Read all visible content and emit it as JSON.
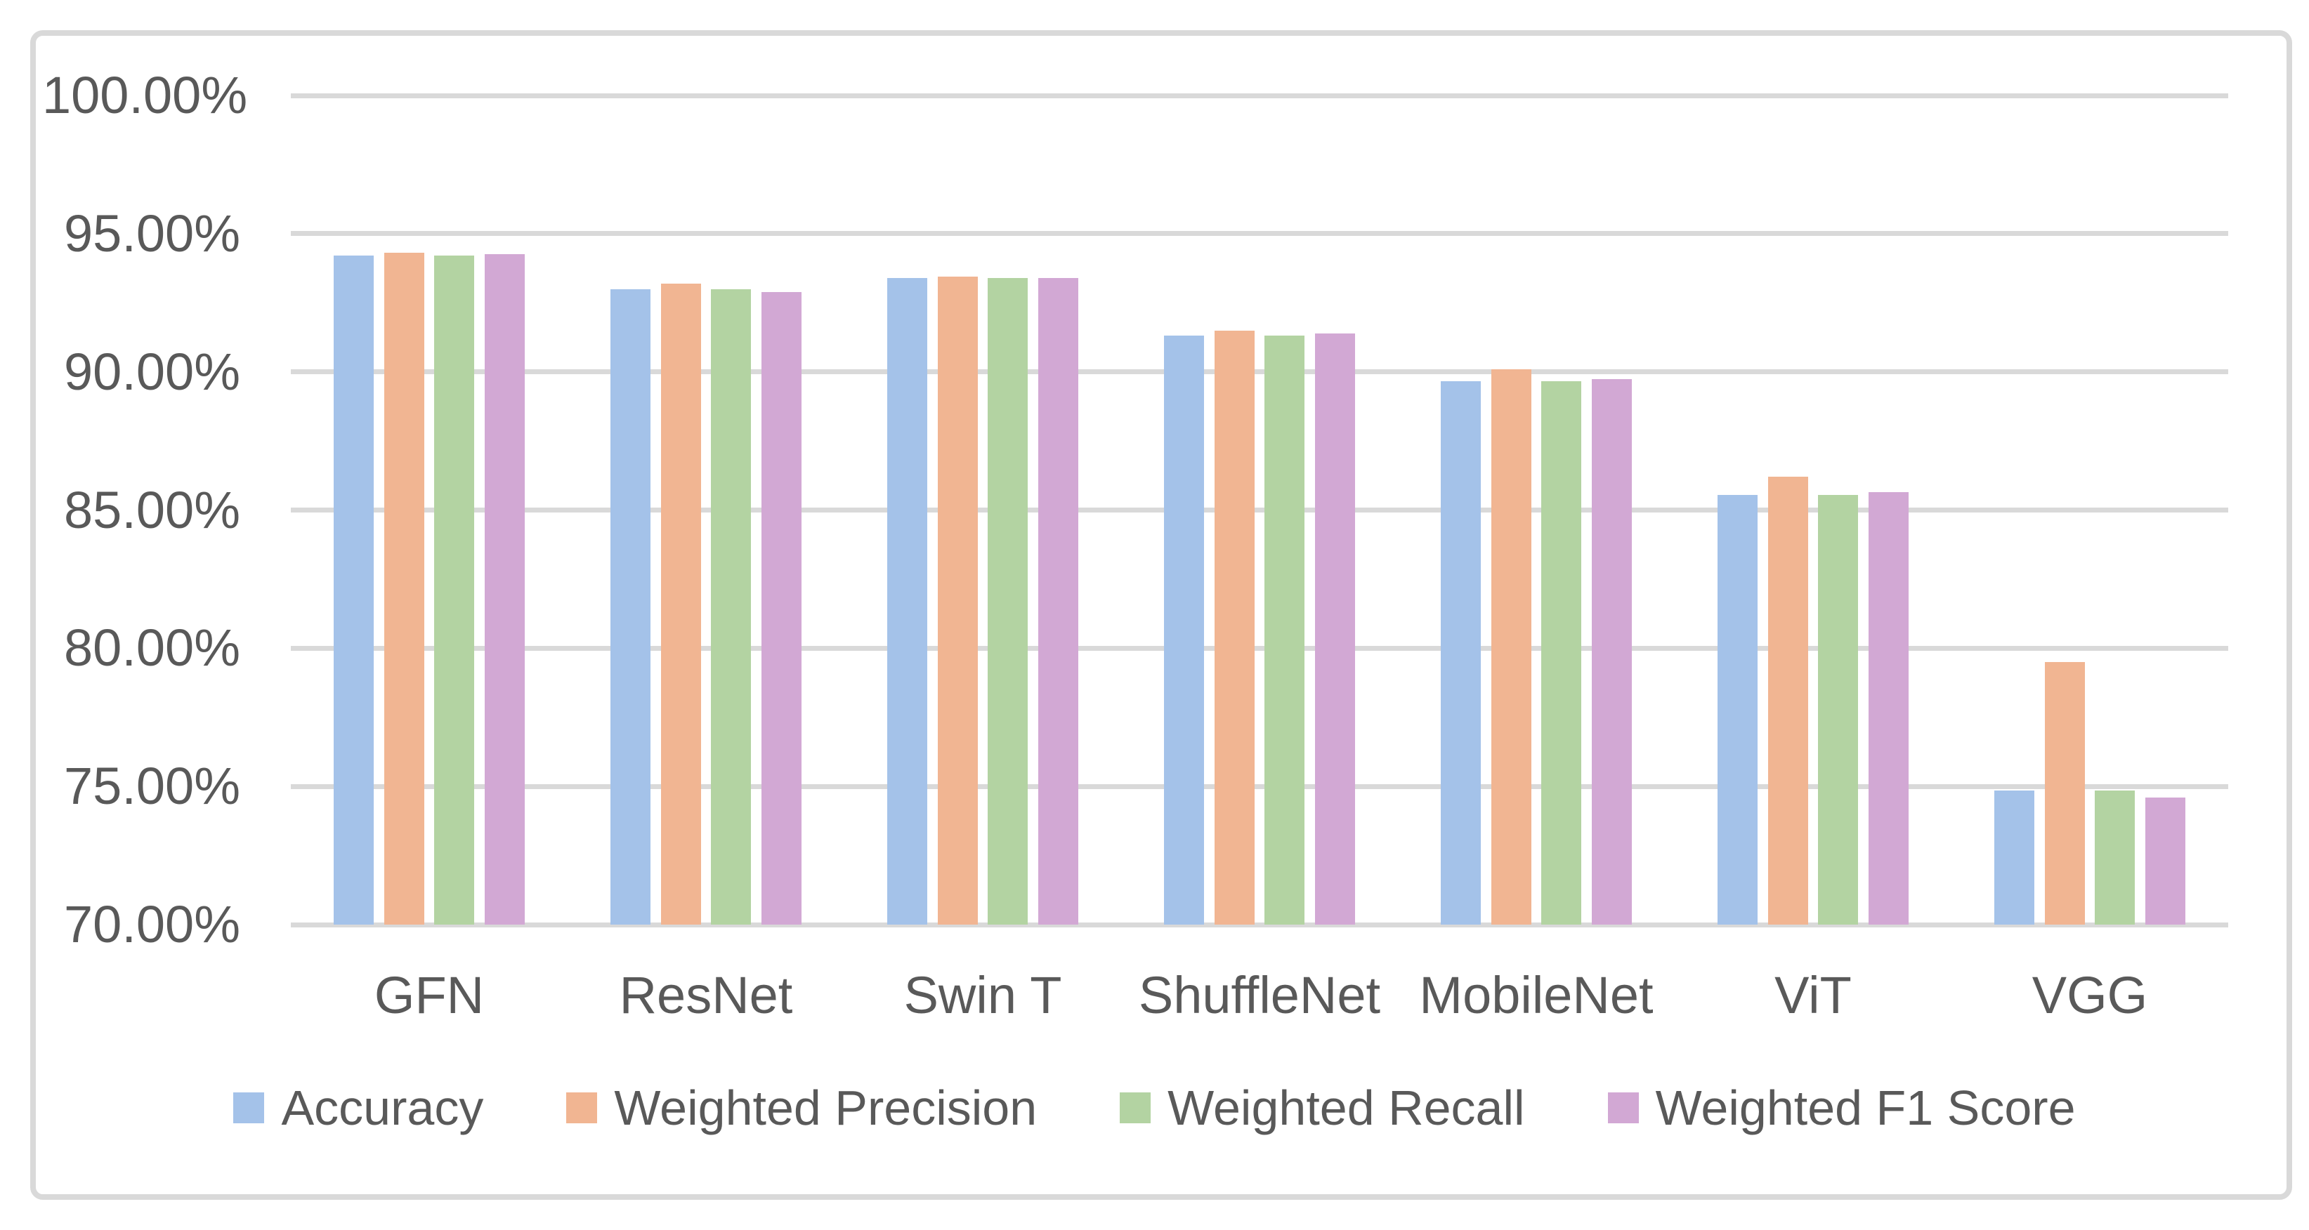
{
  "chart_data": {
    "type": "bar",
    "title": "",
    "xlabel": "",
    "ylabel": "",
    "categories": [
      "GFN",
      "ResNet",
      "Swin T",
      "ShuffleNet",
      "MobileNet",
      "ViT",
      "VGG"
    ],
    "series": [
      {
        "name": "Accuracy",
        "color": "#A4C2E9",
        "values": [
          94.2,
          93.0,
          93.4,
          91.3,
          89.65,
          85.55,
          74.85
        ]
      },
      {
        "name": "Weighted Precision",
        "color": "#F1B592",
        "values": [
          94.3,
          93.2,
          93.45,
          91.5,
          90.1,
          86.2,
          79.5
        ]
      },
      {
        "name": "Weighted Recall",
        "color": "#B3D3A2",
        "values": [
          94.2,
          93.0,
          93.4,
          91.3,
          89.65,
          85.55,
          74.85
        ]
      },
      {
        "name": "Weighted F1 Score",
        "color": "#D2A8D4",
        "values": [
          94.25,
          92.9,
          93.4,
          91.4,
          89.75,
          85.65,
          74.6
        ]
      }
    ],
    "y_axis": {
      "min": 70,
      "max": 100,
      "step": 5,
      "ticks": [
        {
          "value": 100,
          "label": "100.00%"
        },
        {
          "value": 95,
          "label": "95.00%"
        },
        {
          "value": 90,
          "label": "90.00%"
        },
        {
          "value": 85,
          "label": "85.00%"
        },
        {
          "value": 80,
          "label": "80.00%"
        },
        {
          "value": 75,
          "label": "75.00%"
        },
        {
          "value": 70,
          "label": "70.00%"
        }
      ]
    },
    "grid": true,
    "legend_position": "bottom"
  },
  "style": {
    "background": "#FFFFFF",
    "grid_color": "#D9D9D9",
    "border_color": "#D9D9D9",
    "text_color": "#595959"
  }
}
